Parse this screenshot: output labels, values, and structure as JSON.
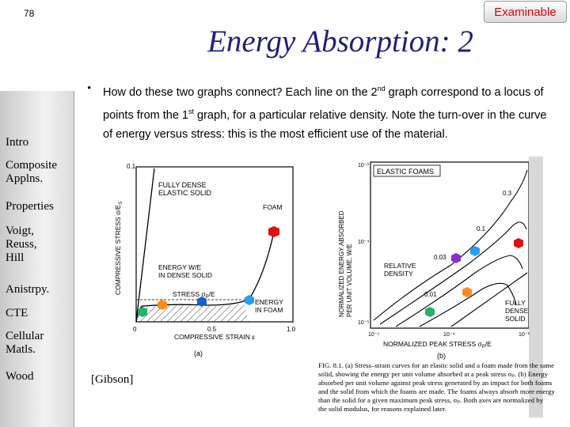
{
  "slide_number": "78",
  "badge": "Examinable",
  "title": "Energy Absorption: 2",
  "sidebar": {
    "items": [
      "Intro",
      "Composite Applns.",
      "Properties",
      "Voigt, Reuss, Hill",
      "Anistrpy.",
      "CTE",
      "Cellular Matls.",
      "Wood"
    ]
  },
  "bullet": {
    "part1": "How do these two graphs connect? Each line on the 2",
    "sup1": "nd",
    "part2": " graph correspond to a locus of points from the 1",
    "sup2": "st",
    "part3": " graph, for a particular relative density.  Note the turn-over in the curve of energy versus stress: this is the most efficient use of the material."
  },
  "citation": "[Gibson]",
  "figure_a": {
    "ylabel": "COMPRESSIVE STRESS σ/E",
    "ylabel_sub": "S",
    "xlabel": "COMPRESSIVE STRAIN ε",
    "y_top": "0.1",
    "x_ticks": [
      "0",
      "0.5",
      "1.0"
    ],
    "label_dense_1": "FULLY DENSE",
    "label_dense_2": "ELASTIC SOLID",
    "label_foam": "FOAM",
    "label_energy_1": "ENERGY W/E",
    "label_energy_2": "IN DENSE SOLID",
    "label_stress": "STRESS σ",
    "label_stress_sub": "P",
    "label_stress_end": "/E",
    "label_in_foam_1": "ENERGY",
    "label_in_foam_2": "IN FOAM",
    "caption_letter": "(a)",
    "point_colors": [
      "#e01010",
      "#ff8c1a",
      "#2a9df4",
      "#1a5fd0",
      "#22b26a"
    ]
  },
  "figure_b": {
    "title": "ELASTIC FOAMS",
    "ylabel_1": "NORMALIZED ENERGY ABSORBED",
    "ylabel_2": "PER UNIT VOLUME, W/E",
    "y_ticks": [
      "10⁻³",
      "10⁻⁴",
      "10⁻⁵"
    ],
    "x_ticks": [
      "10⁻⁵",
      "10⁻⁴",
      "10⁻³"
    ],
    "xlabel": "NORMALIZED PEAK STRESS σ",
    "xlabel_end": "/E",
    "curve_labels": [
      "0.3",
      "0.1",
      "0.03",
      "0.01"
    ],
    "label_rel_1": "RELATIVE",
    "label_rel_2": "DENSITY",
    "label_full_1": "FULLY",
    "label_full_2": "DENSE",
    "label_full_3": "SOLID",
    "caption_letter": "(b)",
    "point_colors": [
      "#e01010",
      "#2a9df4",
      "#8a2ccf",
      "#ff8c1a",
      "#22b26a"
    ]
  },
  "caption": {
    "lines": [
      "FIG. 8.1. (a) Stress–strain curves for an elastic solid and a foam made from the same",
      "solid, showing the energy per unit volume absorbed at a peak stress σₚ. (b) Energy",
      "absorbed per unit volume against peak stress generated by an impact for both foams",
      "and the solid from which the foams are made. The foams always absorb more energy",
      "than the solid for a given maximum peak stress, σₚ. Both axes are normalized by",
      "the solid modulus, for reasons explained later."
    ]
  }
}
